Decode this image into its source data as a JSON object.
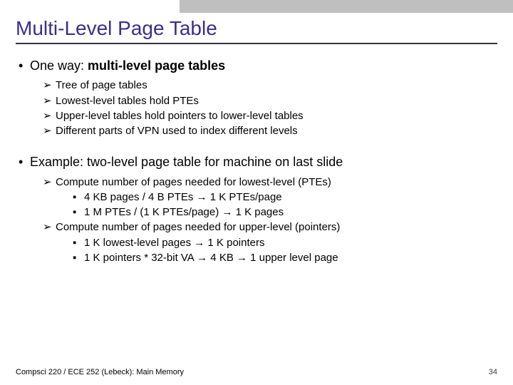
{
  "title": "Multi-Level Page Table",
  "section1": {
    "heading_prefix": "One way: ",
    "heading_bold": "multi-level page tables",
    "items": [
      "Tree of page tables",
      "Lowest-level tables hold PTEs",
      "Upper-level tables hold pointers to lower-level tables",
      "Different parts of VPN used to index different levels"
    ]
  },
  "section2": {
    "heading": "Example: two-level page table for machine on last slide",
    "groups": [
      {
        "label": "Compute number of pages needed for lowest-level (PTEs)",
        "sub": [
          "4 KB pages / 4 B PTEs → 1 K PTEs/page",
          "1 M PTEs / (1 K PTEs/page) → 1 K pages"
        ]
      },
      {
        "label": "Compute number of pages needed for upper-level (pointers)",
        "sub": [
          "1 K lowest-level pages → 1 K pointers",
          "1 K pointers * 32-bit VA → 4 KB → 1 upper level page"
        ]
      }
    ]
  },
  "footer": {
    "left": "Compsci 220 / ECE 252 (Lebeck): Main Memory",
    "pagenum": "34"
  },
  "marks": {
    "l1": "•",
    "l2": "➢",
    "l3": "▪"
  },
  "colors": {
    "title": "#3b2d8f",
    "rule": "#333344",
    "text": "#000000",
    "topbar_gray": "#bfbfbf"
  }
}
